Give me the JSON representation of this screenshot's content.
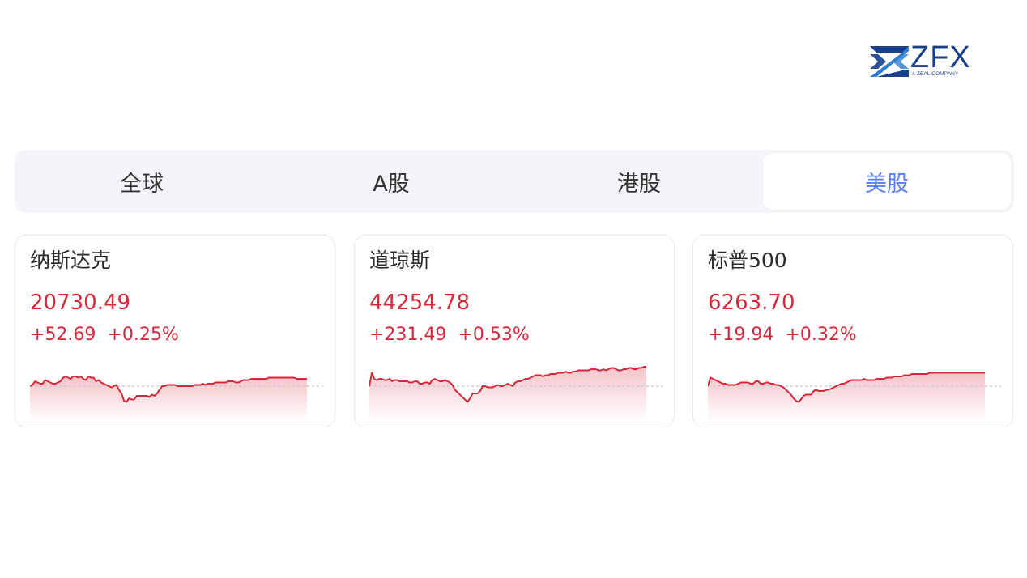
{
  "logo": {
    "wordmark": "ZFX",
    "tagline": "A ZEAL COMPANY",
    "icon": "zfx-logo-mark",
    "colors": {
      "dark": "#1b3f8f",
      "light": "#2f7fd1"
    }
  },
  "tabs": [
    {
      "label": "全球",
      "active": false
    },
    {
      "label": "A股",
      "active": false
    },
    {
      "label": "港股",
      "active": false
    },
    {
      "label": "美股",
      "active": true
    }
  ],
  "colors": {
    "up": "#d6283b",
    "accent": "#5b7ef2",
    "tabbar_bg": "#f4f5f8",
    "baseline": "#c9ccd3"
  },
  "cards": [
    {
      "name": "纳斯达克",
      "price": "20730.49",
      "change": "+52.69",
      "change_pct": "+0.25%",
      "sparkline": [
        50,
        51,
        54,
        53,
        52,
        52,
        55,
        54,
        53,
        52,
        52,
        53,
        54,
        57,
        58,
        57,
        56,
        58,
        58,
        57,
        58,
        56,
        55,
        58,
        57,
        57,
        54,
        55,
        53,
        52,
        51,
        50,
        49,
        50,
        51,
        47,
        44,
        38,
        37,
        40,
        39,
        39,
        42,
        42,
        42,
        42,
        42,
        41,
        43,
        42,
        44,
        47,
        50,
        50,
        51,
        51,
        51,
        51,
        50,
        50,
        50,
        50,
        50,
        50,
        50,
        51,
        51,
        51,
        52,
        51,
        52,
        52,
        52,
        53,
        53,
        53,
        53,
        53,
        54,
        54,
        54,
        53,
        53,
        54,
        55,
        55,
        55,
        56,
        56,
        56,
        56,
        56,
        56,
        56,
        57,
        57,
        57,
        57,
        57,
        57,
        57,
        57,
        57,
        57,
        57,
        56,
        56,
        56,
        56,
        56
      ],
      "baseline": 50
    },
    {
      "name": "道琼斯",
      "price": "44254.78",
      "change": "+231.49",
      "change_pct": "+0.53%",
      "sparkline": [
        50,
        61,
        56,
        55,
        56,
        56,
        55,
        55,
        56,
        54,
        55,
        55,
        54,
        54,
        54,
        54,
        53,
        53,
        54,
        54,
        52,
        52,
        53,
        53,
        52,
        55,
        56,
        55,
        54,
        54,
        55,
        54,
        53,
        51,
        47,
        45,
        43,
        41,
        39,
        37,
        40,
        44,
        44,
        44,
        46,
        50,
        50,
        49,
        49,
        49,
        50,
        51,
        50,
        50,
        51,
        52,
        51,
        50,
        53,
        54,
        54,
        55,
        56,
        56,
        57,
        58,
        59,
        59,
        59,
        58,
        59,
        59,
        60,
        60,
        60,
        61,
        61,
        61,
        62,
        61,
        61,
        62,
        62,
        63,
        63,
        63,
        63,
        63,
        64,
        64,
        64,
        63,
        63,
        64,
        63,
        64,
        65,
        65,
        64,
        63,
        63,
        64,
        64,
        65,
        65,
        64,
        64,
        65,
        65,
        66,
        66
      ],
      "baseline": 50
    },
    {
      "name": "标普500",
      "price": "6263.70",
      "change": "+19.94",
      "change_pct": "+0.32%",
      "sparkline": [
        50,
        57,
        56,
        55,
        54,
        53,
        52,
        52,
        51,
        51,
        51,
        51,
        52,
        53,
        53,
        53,
        53,
        52,
        52,
        54,
        54,
        52,
        52,
        53,
        53,
        52,
        52,
        51,
        51,
        50,
        49,
        47,
        45,
        43,
        40,
        38,
        37,
        39,
        42,
        43,
        43,
        43,
        46,
        47,
        46,
        46,
        46,
        47,
        47,
        48,
        49,
        50,
        51,
        52,
        52,
        53,
        54,
        55,
        55,
        55,
        55,
        55,
        56,
        55,
        55,
        55,
        55,
        56,
        56,
        56,
        56,
        57,
        57,
        57,
        58,
        58,
        58,
        58,
        59,
        59,
        59,
        60,
        60,
        60,
        60,
        60,
        60,
        60,
        61,
        61,
        61,
        61,
        61,
        61,
        61,
        61,
        61,
        61,
        61,
        61,
        61,
        61,
        61,
        61,
        61,
        61,
        61,
        61,
        61,
        61,
        61
      ],
      "baseline": 50
    }
  ]
}
